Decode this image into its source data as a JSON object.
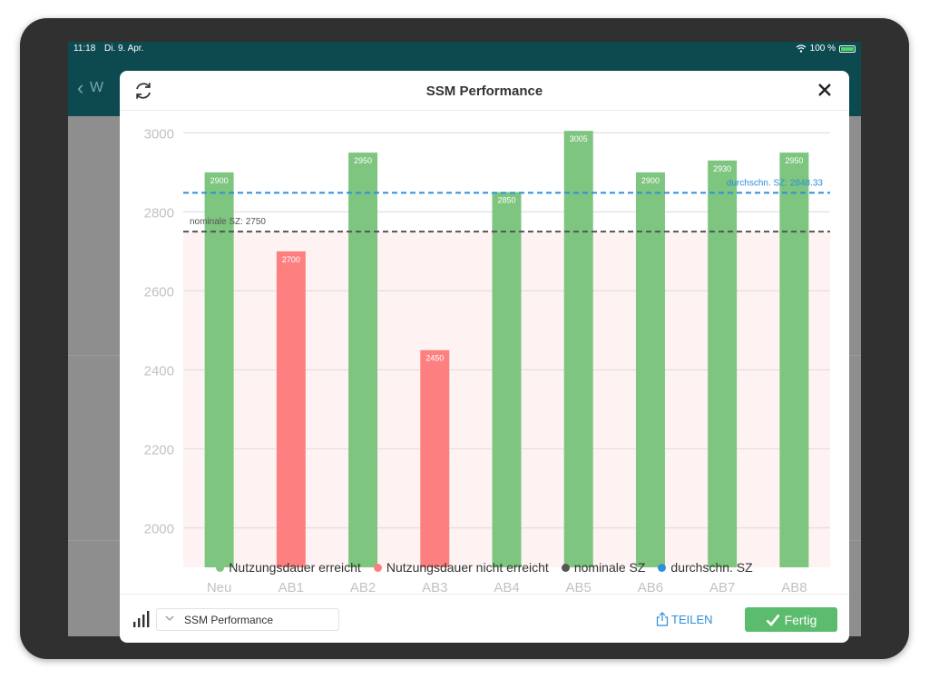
{
  "status_bar": {
    "time": "11:18",
    "date": "Di. 9. Apr.",
    "battery": "100 %"
  },
  "background_nav": {
    "back_label": "W"
  },
  "modal": {
    "title": "SSM Performance",
    "refresh_icon": "refresh-icon",
    "close_icon": "close-icon"
  },
  "chart_data": {
    "type": "bar",
    "categories": [
      "Neu",
      "AB1",
      "AB2",
      "AB3",
      "AB4",
      "AB5",
      "AB6",
      "AB7",
      "AB8"
    ],
    "values": [
      2900,
      2700,
      2950,
      2450,
      2850,
      3005,
      2900,
      2930,
      2950
    ],
    "data_labels": [
      "2900",
      "2700",
      "2950",
      "2450",
      "2850",
      "3005",
      "2900",
      "2930",
      "2950"
    ],
    "achieved": [
      true,
      false,
      true,
      false,
      true,
      true,
      true,
      true,
      true
    ],
    "y_ticks": [
      "2000",
      "2200",
      "2400",
      "2600",
      "2800",
      "3000"
    ],
    "ylim": [
      1900,
      3010
    ],
    "colors": {
      "achieved": "#7ec57f",
      "not_achieved": "#fd8080",
      "nominal": "#555555",
      "average": "#2e8fdd",
      "below_nominal_band": "#fef3f2",
      "grid": "#e0e0e0"
    },
    "reference_lines": [
      {
        "name": "nominale SZ",
        "value": 2750,
        "label": "nominale SZ: 2750",
        "style": "dashed"
      },
      {
        "name": "durchschn. SZ",
        "value": 2848.33,
        "label": "durchschn. SZ: 2848.33",
        "style": "dashed"
      }
    ],
    "legend": [
      {
        "label": "Nutzungsdauer erreicht",
        "color": "#7ec57f"
      },
      {
        "label": "Nutzungsdauer nicht erreicht",
        "color": "#fd8080"
      },
      {
        "label": "nominale SZ",
        "color": "#555555"
      },
      {
        "label": "durchschn. SZ",
        "color": "#2e8fdd"
      }
    ],
    "legend_position": "bottom",
    "grid": true
  },
  "footer": {
    "chart_icon": "bar-chart-icon",
    "select_value": "SSM Performance",
    "share_label": "TEILEN",
    "share_icon": "share-icon",
    "done_label": "Fertig",
    "done_icon": "checkmark-icon"
  }
}
